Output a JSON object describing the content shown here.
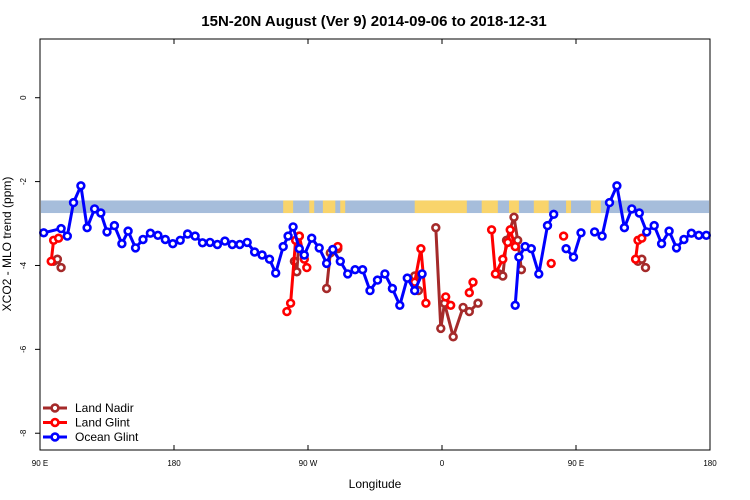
{
  "chart_data": {
    "type": "line",
    "title": "15N-20N August (Ver 9)   2014-09-06 to 2018-12-31",
    "xlabel": "Longitude",
    "ylabel": "XCO2 - MLO trend (ppm)",
    "xlim": [
      -90,
      180
    ],
    "ylim": [
      -8.4,
      1.4
    ],
    "x_ticks": [
      {
        "value": -90,
        "label": "90 E"
      },
      {
        "value": -36,
        "label": "180"
      },
      {
        "value": 18,
        "label": "90 W"
      },
      {
        "value": 72,
        "label": "0"
      },
      {
        "value": 126,
        "label": "90 E"
      },
      {
        "value": 180,
        "label": "180"
      }
    ],
    "y_ticks": [
      {
        "value": 0,
        "label": "0"
      },
      {
        "value": -2,
        "label": "-2"
      },
      {
        "value": -4,
        "label": "-4"
      },
      {
        "value": -6,
        "label": "-6"
      },
      {
        "value": -8,
        "label": "-8"
      }
    ],
    "legend_position": "bottom-left",
    "land_ocean_strip": {
      "y_range": [
        -2.75,
        -2.45
      ],
      "ocean_color": "#a6bddb",
      "land_color": "#f9d46b",
      "land_spans": [
        [
          8.0,
          12.0
        ],
        [
          18.5,
          20.5
        ],
        [
          24.0,
          29.0
        ],
        [
          31.0,
          33.0
        ],
        [
          61.0,
          82.0
        ],
        [
          88.0,
          94.5
        ],
        [
          99.0,
          103.0
        ],
        [
          109.0,
          115.0
        ],
        [
          122.0,
          124.0
        ],
        [
          132.0,
          136.0
        ]
      ]
    },
    "series": [
      {
        "name": "Land Nadir",
        "color": "#a52a2a",
        "segments": [
          [
            [
              -84.5,
              -3.9
            ],
            [
              -83.0,
              -3.85
            ],
            [
              -81.5,
              -4.05
            ]
          ],
          [
            [
              12.5,
              -3.9
            ],
            [
              13.5,
              -4.15
            ],
            [
              14.5,
              -3.3
            ]
          ],
          [
            [
              25.5,
              -4.55
            ],
            [
              27.0,
              -3.7
            ],
            [
              30.0,
              -3.6
            ]
          ],
          [
            [
              61.0,
              -4.25
            ],
            [
              62.5,
              -4.6
            ]
          ],
          [
            [
              69.5,
              -3.1
            ],
            [
              71.5,
              -5.5
            ],
            [
              73.0,
              -4.9
            ],
            [
              76.5,
              -5.7
            ],
            [
              80.5,
              -5.0
            ],
            [
              83.0,
              -5.1
            ],
            [
              86.5,
              -4.9
            ]
          ],
          [
            [
              95.0,
              -4.2
            ],
            [
              96.5,
              -4.25
            ],
            [
              98.0,
              -3.4
            ],
            [
              101.0,
              -2.85
            ],
            [
              102.5,
              -3.4
            ],
            [
              104.0,
              -4.1
            ]
          ],
          [
            [
              151.0,
              -3.9
            ],
            [
              152.5,
              -3.85
            ],
            [
              154.0,
              -4.05
            ]
          ]
        ]
      },
      {
        "name": "Land Glint",
        "color": "#ff0000",
        "segments": [
          [
            [
              -85.5,
              -3.9
            ],
            [
              -84.5,
              -3.4
            ],
            [
              -82.5,
              -3.35
            ]
          ],
          [
            [
              9.5,
              -5.1
            ],
            [
              11.0,
              -4.9
            ],
            [
              13.0,
              -3.4
            ],
            [
              14.5,
              -3.3
            ],
            [
              16.5,
              -3.85
            ],
            [
              17.5,
              -4.05
            ]
          ],
          [
            [
              30.0,
              -3.55
            ]
          ],
          [
            [
              61.0,
              -4.4
            ],
            [
              63.5,
              -3.6
            ],
            [
              65.5,
              -4.9
            ]
          ],
          [
            [
              73.5,
              -4.75
            ],
            [
              75.5,
              -4.95
            ]
          ],
          [
            [
              83.0,
              -4.65
            ],
            [
              84.5,
              -4.4
            ]
          ],
          [
            [
              92.0,
              -3.15
            ],
            [
              93.5,
              -4.2
            ],
            [
              96.5,
              -3.85
            ],
            [
              98.5,
              -3.45
            ],
            [
              99.5,
              -3.15
            ],
            [
              101.5,
              -3.55
            ]
          ],
          [
            [
              116.0,
              -3.95
            ]
          ],
          [
            [
              121.0,
              -3.3
            ]
          ],
          [
            [
              150.0,
              -3.85
            ],
            [
              151.0,
              -3.4
            ],
            [
              152.5,
              -3.35
            ]
          ]
        ]
      },
      {
        "name": "Ocean Glint",
        "color": "#0000ff",
        "segments": [
          [
            [
              -88.5,
              -3.22
            ],
            [
              -86.5,
              null
            ],
            [
              -81.5,
              -3.12
            ],
            [
              -79.0,
              -3.3
            ],
            [
              -76.5,
              -2.5
            ],
            [
              -73.5,
              -2.1
            ],
            [
              -71.0,
              -3.1
            ],
            [
              -68.0,
              -2.65
            ],
            [
              -65.5,
              -2.75
            ],
            [
              -63.0,
              -3.2
            ],
            [
              -60.0,
              -3.05
            ],
            [
              -57.0,
              -3.48
            ],
            [
              -54.5,
              -3.18
            ],
            [
              -51.5,
              -3.58
            ],
            [
              -48.5,
              -3.38
            ],
            [
              -45.5,
              -3.23
            ],
            [
              -42.5,
              -3.28
            ],
            [
              -39.5,
              -3.38
            ],
            [
              -36.5,
              -3.48
            ],
            [
              -33.5,
              -3.4
            ],
            [
              -30.5,
              -3.25
            ],
            [
              -27.5,
              -3.3
            ],
            [
              -24.5,
              -3.46
            ],
            [
              -21.5,
              -3.45
            ],
            [
              -18.5,
              -3.5
            ],
            [
              -15.5,
              -3.42
            ],
            [
              -12.5,
              -3.5
            ],
            [
              -9.5,
              -3.5
            ],
            [
              -6.5,
              -3.45
            ],
            [
              -3.5,
              -3.68
            ],
            [
              -0.5,
              -3.75
            ],
            [
              2.5,
              -3.85
            ],
            [
              5.0,
              -4.18
            ],
            [
              8.0,
              -3.55
            ],
            [
              10.0,
              -3.3
            ],
            [
              12.0,
              -3.08
            ],
            [
              14.5,
              -3.6
            ],
            [
              16.5,
              -3.75
            ],
            [
              19.5,
              -3.35
            ],
            [
              22.5,
              -3.58
            ],
            [
              25.5,
              -3.95
            ],
            [
              28.0,
              -3.62
            ],
            [
              31.0,
              -3.9
            ],
            [
              34.0,
              -4.2
            ],
            [
              37.0,
              -4.1
            ],
            [
              40.0,
              -4.1
            ],
            [
              43.0,
              -4.6
            ],
            [
              46.0,
              -4.35
            ],
            [
              49.0,
              -4.2
            ],
            [
              52.0,
              -4.55
            ],
            [
              55.0,
              -4.95
            ],
            [
              58.0,
              -4.3
            ],
            [
              61.0,
              -4.6
            ],
            [
              64.0,
              -4.2
            ]
          ],
          [
            [
              101.5,
              -4.95
            ],
            [
              103.0,
              -3.8
            ],
            [
              105.5,
              -3.55
            ],
            [
              108.0,
              -3.6
            ],
            [
              111.0,
              -4.2
            ],
            [
              114.5,
              -3.05
            ],
            [
              117.0,
              -2.78
            ]
          ],
          [
            [
              122.0,
              -3.6
            ],
            [
              125.0,
              -3.8
            ],
            [
              128.0,
              -3.22
            ]
          ],
          [
            [
              133.5,
              -3.2
            ],
            [
              136.5,
              -3.3
            ],
            [
              139.5,
              -2.5
            ],
            [
              142.5,
              -2.1
            ],
            [
              145.5,
              -3.1
            ],
            [
              148.5,
              -2.65
            ],
            [
              151.5,
              -2.75
            ],
            [
              154.5,
              -3.2
            ],
            [
              157.5,
              -3.05
            ],
            [
              160.5,
              -3.48
            ],
            [
              163.5,
              -3.18
            ],
            [
              166.5,
              -3.58
            ],
            [
              169.5,
              -3.38
            ],
            [
              172.5,
              -3.23
            ],
            [
              175.5,
              -3.28
            ],
            [
              178.5,
              -3.28
            ]
          ]
        ]
      }
    ]
  }
}
